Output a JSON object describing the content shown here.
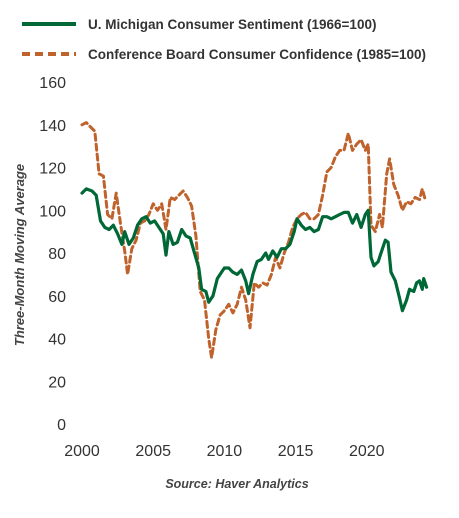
{
  "chart_data": {
    "type": "line",
    "ylabel": "Three-Month Moving Average",
    "xlabel": "",
    "source": "Source: Haver Analytics",
    "xlim": [
      2000,
      2024.3
    ],
    "ylim": [
      0,
      160
    ],
    "xticks": [
      2000,
      2005,
      2010,
      2015,
      2020
    ],
    "yticks": [
      0,
      20,
      40,
      60,
      80,
      100,
      120,
      140,
      160
    ],
    "grid": false,
    "legend_position": "top",
    "series": [
      {
        "name": "U. Michigan Consumer Sentiment (1966=100)",
        "color": "#006837",
        "style": "solid",
        "points": [
          [
            2000.0,
            108
          ],
          [
            2000.3,
            110
          ],
          [
            2000.7,
            109
          ],
          [
            2001.0,
            107
          ],
          [
            2001.3,
            95
          ],
          [
            2001.6,
            92
          ],
          [
            2001.9,
            91
          ],
          [
            2002.2,
            93
          ],
          [
            2002.5,
            89
          ],
          [
            2002.8,
            84
          ],
          [
            2003.0,
            90
          ],
          [
            2003.3,
            84
          ],
          [
            2003.6,
            87
          ],
          [
            2003.9,
            93
          ],
          [
            2004.2,
            96
          ],
          [
            2004.5,
            97
          ],
          [
            2004.8,
            94
          ],
          [
            2005.1,
            95
          ],
          [
            2005.4,
            92
          ],
          [
            2005.7,
            89
          ],
          [
            2005.9,
            79
          ],
          [
            2006.1,
            90
          ],
          [
            2006.4,
            84
          ],
          [
            2006.7,
            85
          ],
          [
            2007.0,
            91
          ],
          [
            2007.3,
            88
          ],
          [
            2007.6,
            87
          ],
          [
            2007.9,
            80
          ],
          [
            2008.2,
            73
          ],
          [
            2008.4,
            63
          ],
          [
            2008.7,
            62
          ],
          [
            2008.9,
            57
          ],
          [
            2009.2,
            60
          ],
          [
            2009.5,
            68
          ],
          [
            2009.8,
            71
          ],
          [
            2010.0,
            73
          ],
          [
            2010.3,
            73
          ],
          [
            2010.6,
            71
          ],
          [
            2010.9,
            70
          ],
          [
            2011.2,
            72
          ],
          [
            2011.5,
            67
          ],
          [
            2011.7,
            61
          ],
          [
            2012.0,
            70
          ],
          [
            2012.3,
            76
          ],
          [
            2012.6,
            77
          ],
          [
            2012.9,
            80
          ],
          [
            2013.1,
            77
          ],
          [
            2013.4,
            81
          ],
          [
            2013.7,
            78
          ],
          [
            2014.0,
            82
          ],
          [
            2014.3,
            82
          ],
          [
            2014.6,
            84
          ],
          [
            2014.9,
            90
          ],
          [
            2015.1,
            96
          ],
          [
            2015.4,
            93
          ],
          [
            2015.7,
            91
          ],
          [
            2016.0,
            92
          ],
          [
            2016.3,
            90
          ],
          [
            2016.6,
            91
          ],
          [
            2016.9,
            97
          ],
          [
            2017.2,
            97
          ],
          [
            2017.5,
            96
          ],
          [
            2017.8,
            97
          ],
          [
            2018.1,
            98
          ],
          [
            2018.4,
            99
          ],
          [
            2018.7,
            99
          ],
          [
            2019.0,
            94
          ],
          [
            2019.3,
            98
          ],
          [
            2019.6,
            92
          ],
          [
            2019.9,
            98
          ],
          [
            2020.1,
            100
          ],
          [
            2020.3,
            78
          ],
          [
            2020.5,
            74
          ],
          [
            2020.8,
            76
          ],
          [
            2021.0,
            80
          ],
          [
            2021.3,
            86
          ],
          [
            2021.5,
            85
          ],
          [
            2021.7,
            71
          ],
          [
            2022.0,
            67
          ],
          [
            2022.3,
            59
          ],
          [
            2022.5,
            53
          ],
          [
            2022.8,
            58
          ],
          [
            2023.0,
            63
          ],
          [
            2023.3,
            62
          ],
          [
            2023.5,
            66
          ],
          [
            2023.7,
            67
          ],
          [
            2023.9,
            63
          ],
          [
            2024.0,
            68
          ],
          [
            2024.2,
            64
          ]
        ]
      },
      {
        "name": "Conference Board Consumer Confidence (1985=100)",
        "color": "#c0622b",
        "style": "dashed",
        "points": [
          [
            2000.0,
            140
          ],
          [
            2000.3,
            141
          ],
          [
            2000.6,
            139
          ],
          [
            2000.9,
            137
          ],
          [
            2001.2,
            117
          ],
          [
            2001.5,
            116
          ],
          [
            2001.8,
            98
          ],
          [
            2002.1,
            96
          ],
          [
            2002.4,
            108
          ],
          [
            2002.7,
            94
          ],
          [
            2003.0,
            81
          ],
          [
            2003.2,
            70
          ],
          [
            2003.5,
            82
          ],
          [
            2003.8,
            86
          ],
          [
            2004.1,
            94
          ],
          [
            2004.4,
            95
          ],
          [
            2004.7,
            98
          ],
          [
            2005.0,
            103
          ],
          [
            2005.3,
            100
          ],
          [
            2005.6,
            103
          ],
          [
            2005.9,
            91
          ],
          [
            2006.2,
            106
          ],
          [
            2006.5,
            105
          ],
          [
            2006.8,
            107
          ],
          [
            2007.1,
            109
          ],
          [
            2007.4,
            106
          ],
          [
            2007.7,
            102
          ],
          [
            2008.0,
            88
          ],
          [
            2008.3,
            62
          ],
          [
            2008.6,
            58
          ],
          [
            2008.9,
            40
          ],
          [
            2009.1,
            31
          ],
          [
            2009.4,
            44
          ],
          [
            2009.7,
            51
          ],
          [
            2010.0,
            53
          ],
          [
            2010.3,
            56
          ],
          [
            2010.6,
            52
          ],
          [
            2010.9,
            56
          ],
          [
            2011.2,
            64
          ],
          [
            2011.5,
            58
          ],
          [
            2011.8,
            45
          ],
          [
            2012.1,
            66
          ],
          [
            2012.4,
            64
          ],
          [
            2012.7,
            66
          ],
          [
            2013.0,
            65
          ],
          [
            2013.3,
            70
          ],
          [
            2013.6,
            78
          ],
          [
            2013.9,
            73
          ],
          [
            2014.2,
            80
          ],
          [
            2014.5,
            85
          ],
          [
            2014.8,
            92
          ],
          [
            2015.1,
            96
          ],
          [
            2015.4,
            98
          ],
          [
            2015.7,
            99
          ],
          [
            2016.0,
            96
          ],
          [
            2016.3,
            96
          ],
          [
            2016.6,
            98
          ],
          [
            2016.9,
            107
          ],
          [
            2017.2,
            118
          ],
          [
            2017.5,
            120
          ],
          [
            2017.8,
            125
          ],
          [
            2018.1,
            128
          ],
          [
            2018.4,
            128
          ],
          [
            2018.7,
            136
          ],
          [
            2019.0,
            128
          ],
          [
            2019.3,
            131
          ],
          [
            2019.6,
            133
          ],
          [
            2019.9,
            128
          ],
          [
            2020.1,
            131
          ],
          [
            2020.3,
            93
          ],
          [
            2020.6,
            90
          ],
          [
            2020.9,
            98
          ],
          [
            2021.1,
            92
          ],
          [
            2021.4,
            117
          ],
          [
            2021.6,
            124
          ],
          [
            2021.9,
            112
          ],
          [
            2022.2,
            107
          ],
          [
            2022.5,
            100
          ],
          [
            2022.8,
            104
          ],
          [
            2023.1,
            103
          ],
          [
            2023.4,
            106
          ],
          [
            2023.7,
            105
          ],
          [
            2023.9,
            110
          ],
          [
            2024.1,
            105
          ]
        ]
      }
    ]
  }
}
